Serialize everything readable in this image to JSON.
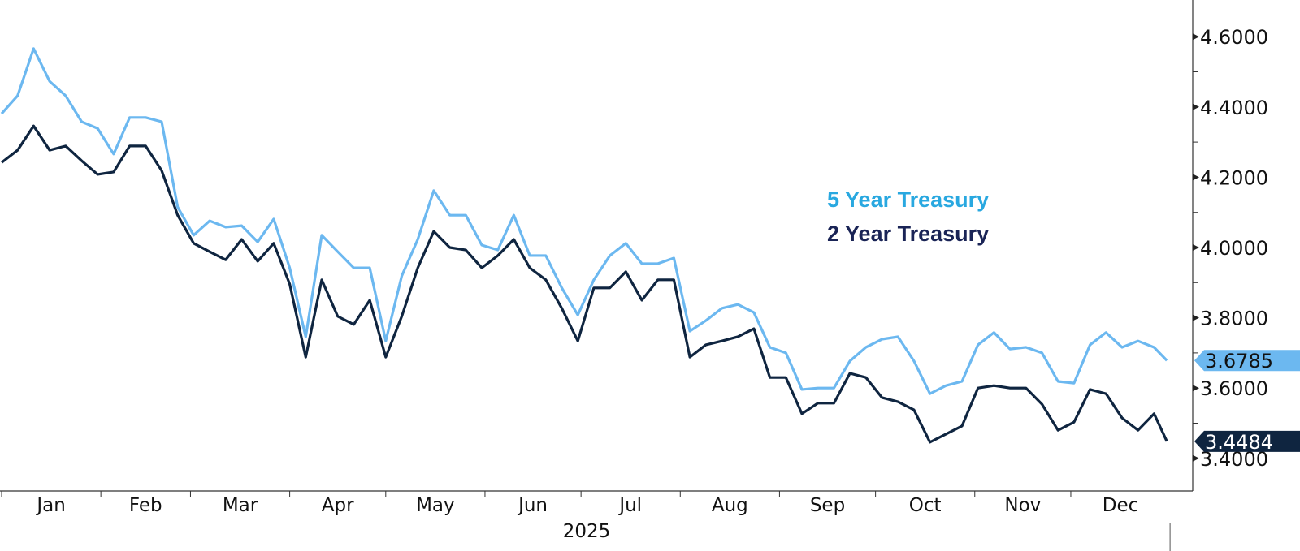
{
  "chart_data": {
    "type": "line",
    "title": "",
    "xlabel": "2025",
    "ylabel": "",
    "ylim": [
      3.3,
      4.7
    ],
    "y_ticks": [
      "4.6000",
      "4.4000",
      "4.2000",
      "4.0000",
      "3.8000",
      "3.6000",
      "3.4000"
    ],
    "x_ticks": [
      "Jan",
      "Feb",
      "Mar",
      "Apr",
      "May",
      "Jun",
      "Jul",
      "Aug",
      "Sep",
      "Oct",
      "Nov",
      "Dec"
    ],
    "grid": false,
    "legend_placement": "center-right",
    "x": [
      "2025-01-01",
      "2025-01-06",
      "2025-01-11",
      "2025-01-16",
      "2025-01-21",
      "2025-01-26",
      "2025-01-31",
      "2025-02-05",
      "2025-02-10",
      "2025-02-15",
      "2025-02-20",
      "2025-02-25",
      "2025-03-02",
      "2025-03-07",
      "2025-03-12",
      "2025-03-17",
      "2025-03-22",
      "2025-03-27",
      "2025-04-01",
      "2025-04-06",
      "2025-04-11",
      "2025-04-16",
      "2025-04-21",
      "2025-04-26",
      "2025-05-01",
      "2025-05-06",
      "2025-05-11",
      "2025-05-16",
      "2025-05-21",
      "2025-05-26",
      "2025-05-31",
      "2025-06-05",
      "2025-06-10",
      "2025-06-15",
      "2025-06-20",
      "2025-06-25",
      "2025-06-30",
      "2025-07-05",
      "2025-07-10",
      "2025-07-15",
      "2025-07-20",
      "2025-07-25",
      "2025-07-30",
      "2025-08-04",
      "2025-08-09",
      "2025-08-14",
      "2025-08-19",
      "2025-08-24",
      "2025-08-29",
      "2025-09-03",
      "2025-09-08",
      "2025-09-13",
      "2025-09-18",
      "2025-09-23",
      "2025-09-28",
      "2025-10-03",
      "2025-10-08",
      "2025-10-13",
      "2025-10-18",
      "2025-10-23",
      "2025-10-28",
      "2025-11-02",
      "2025-11-07",
      "2025-11-12",
      "2025-11-17",
      "2025-11-22",
      "2025-11-27",
      "2025-12-02",
      "2025-12-07",
      "2025-12-12",
      "2025-12-17",
      "2025-12-22",
      "2025-12-27",
      "2025-12-31"
    ],
    "series": [
      {
        "name": "5 Year Treasury",
        "color": "#6cb8f0",
        "last_value_label": "3.6785",
        "values": [
          4.381,
          4.432,
          4.566,
          4.473,
          4.432,
          4.358,
          4.339,
          4.266,
          4.37,
          4.37,
          4.358,
          4.115,
          4.035,
          4.076,
          4.058,
          4.062,
          4.016,
          4.081,
          3.942,
          3.746,
          4.035,
          3.988,
          3.942,
          3.942,
          3.734,
          3.919,
          4.023,
          4.162,
          4.092,
          4.092,
          4.007,
          3.993,
          4.092,
          3.977,
          3.977,
          3.885,
          3.808,
          3.908,
          3.977,
          4.012,
          3.954,
          3.954,
          3.97,
          3.762,
          3.792,
          3.827,
          3.838,
          3.815,
          3.716,
          3.7,
          3.596,
          3.6,
          3.6,
          3.677,
          3.716,
          3.739,
          3.746,
          3.677,
          3.584,
          3.607,
          3.619,
          3.723,
          3.758,
          3.711,
          3.716,
          3.7,
          3.619,
          3.614,
          3.723,
          3.758,
          3.716,
          3.734,
          3.716,
          3.6785
        ]
      },
      {
        "name": "2 Year Treasury",
        "color": "#0f2540",
        "last_value_label": "3.4484",
        "values": [
          4.242,
          4.277,
          4.346,
          4.277,
          4.289,
          4.247,
          4.208,
          4.215,
          4.289,
          4.289,
          4.219,
          4.092,
          4.012,
          3.988,
          3.965,
          4.023,
          3.961,
          4.012,
          3.896,
          3.688,
          3.908,
          3.804,
          3.781,
          3.85,
          3.688,
          3.804,
          3.942,
          4.046,
          4.0,
          3.993,
          3.942,
          3.977,
          4.023,
          3.942,
          3.908,
          3.827,
          3.734,
          3.885,
          3.885,
          3.931,
          3.85,
          3.908,
          3.908,
          3.688,
          3.723,
          3.734,
          3.746,
          3.769,
          3.63,
          3.63,
          3.527,
          3.557,
          3.557,
          3.642,
          3.63,
          3.573,
          3.561,
          3.538,
          3.446,
          3.469,
          3.492,
          3.6,
          3.607,
          3.6,
          3.6,
          3.554,
          3.48,
          3.503,
          3.596,
          3.584,
          3.515,
          3.48,
          3.527,
          3.4484
        ]
      }
    ]
  },
  "legend": {
    "five_year": {
      "label": "5 Year Treasury",
      "color": "#29a8e0"
    },
    "two_year": {
      "label": "2 Year Treasury",
      "color": "#1a2456"
    }
  }
}
